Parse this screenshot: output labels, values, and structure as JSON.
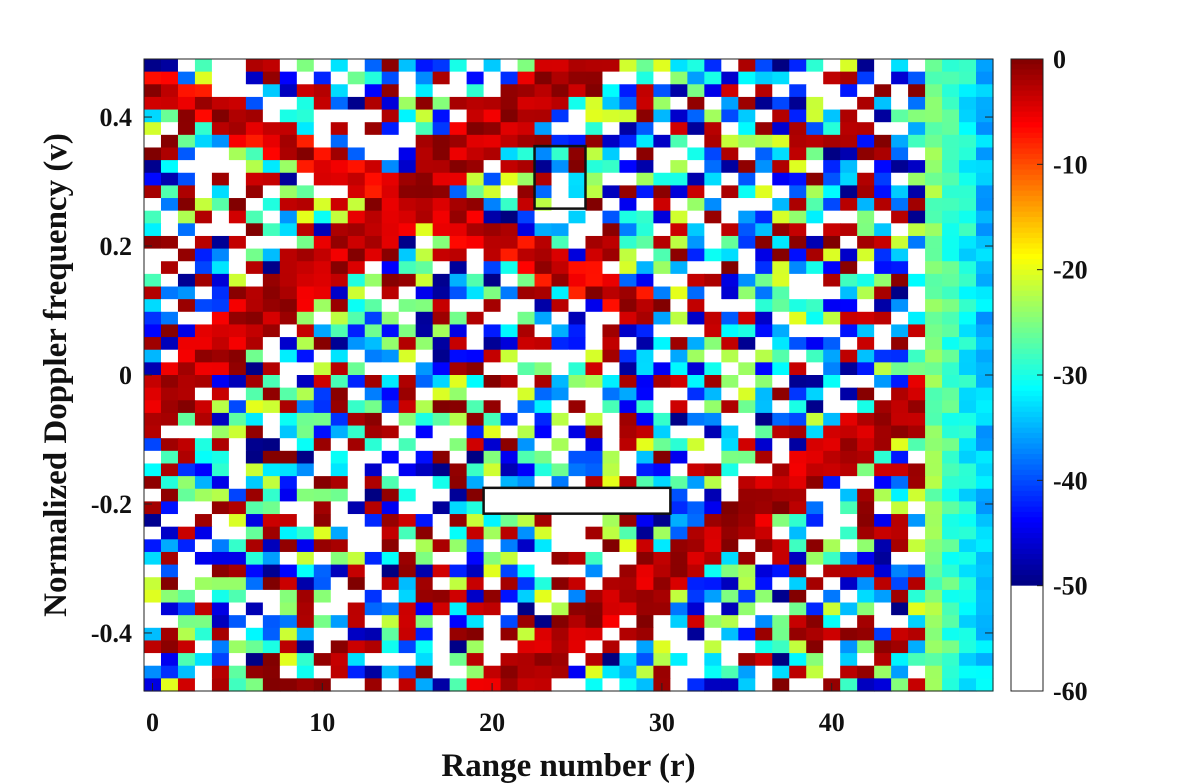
{
  "chart_data": {
    "type": "heatmap",
    "title": "",
    "xlabel": "Range number (r)",
    "ylabel": "Normalized Doppler frequency (v)",
    "x_range": [
      0,
      49
    ],
    "y_range": [
      -0.49,
      0.49
    ],
    "x_ticks": [
      0,
      10,
      20,
      30,
      40
    ],
    "x_tick_labels": [
      "0",
      "10",
      "20",
      "30",
      "40"
    ],
    "y_ticks": [
      0.4,
      0.2,
      0,
      -0.2,
      -0.4
    ],
    "y_tick_labels": [
      "0.4",
      "0.2",
      "0",
      "-0.2",
      "-0.4"
    ],
    "grid": {
      "columns": 50,
      "rows": 50
    },
    "colorbar": {
      "range": [
        -60,
        0
      ],
      "ticks": [
        0,
        -10,
        -20,
        -30,
        -40,
        -50,
        -60
      ],
      "tick_labels": [
        "0",
        "-10",
        "-20",
        "-30",
        "-40",
        "-50",
        "-60"
      ],
      "below_min_color": "#ffffff",
      "colormap": "jet",
      "white_below": -50
    },
    "highlight_boxes": [
      {
        "x_range": [
          22.5,
          25.5
        ],
        "y_range": [
          0.258,
          0.355
        ]
      },
      {
        "x_range": [
          19.5,
          30.5
        ],
        "y_range": [
          -0.215,
          -0.175
        ]
      }
    ],
    "values_note": "",
    "colors": {
      "max": "#800000",
      "min": "#0000ff",
      "background": "#ffffff"
    }
  },
  "labels": {
    "xlabel": "Range number (r)",
    "ylabel": "Normalized Doppler frequency (v)"
  }
}
